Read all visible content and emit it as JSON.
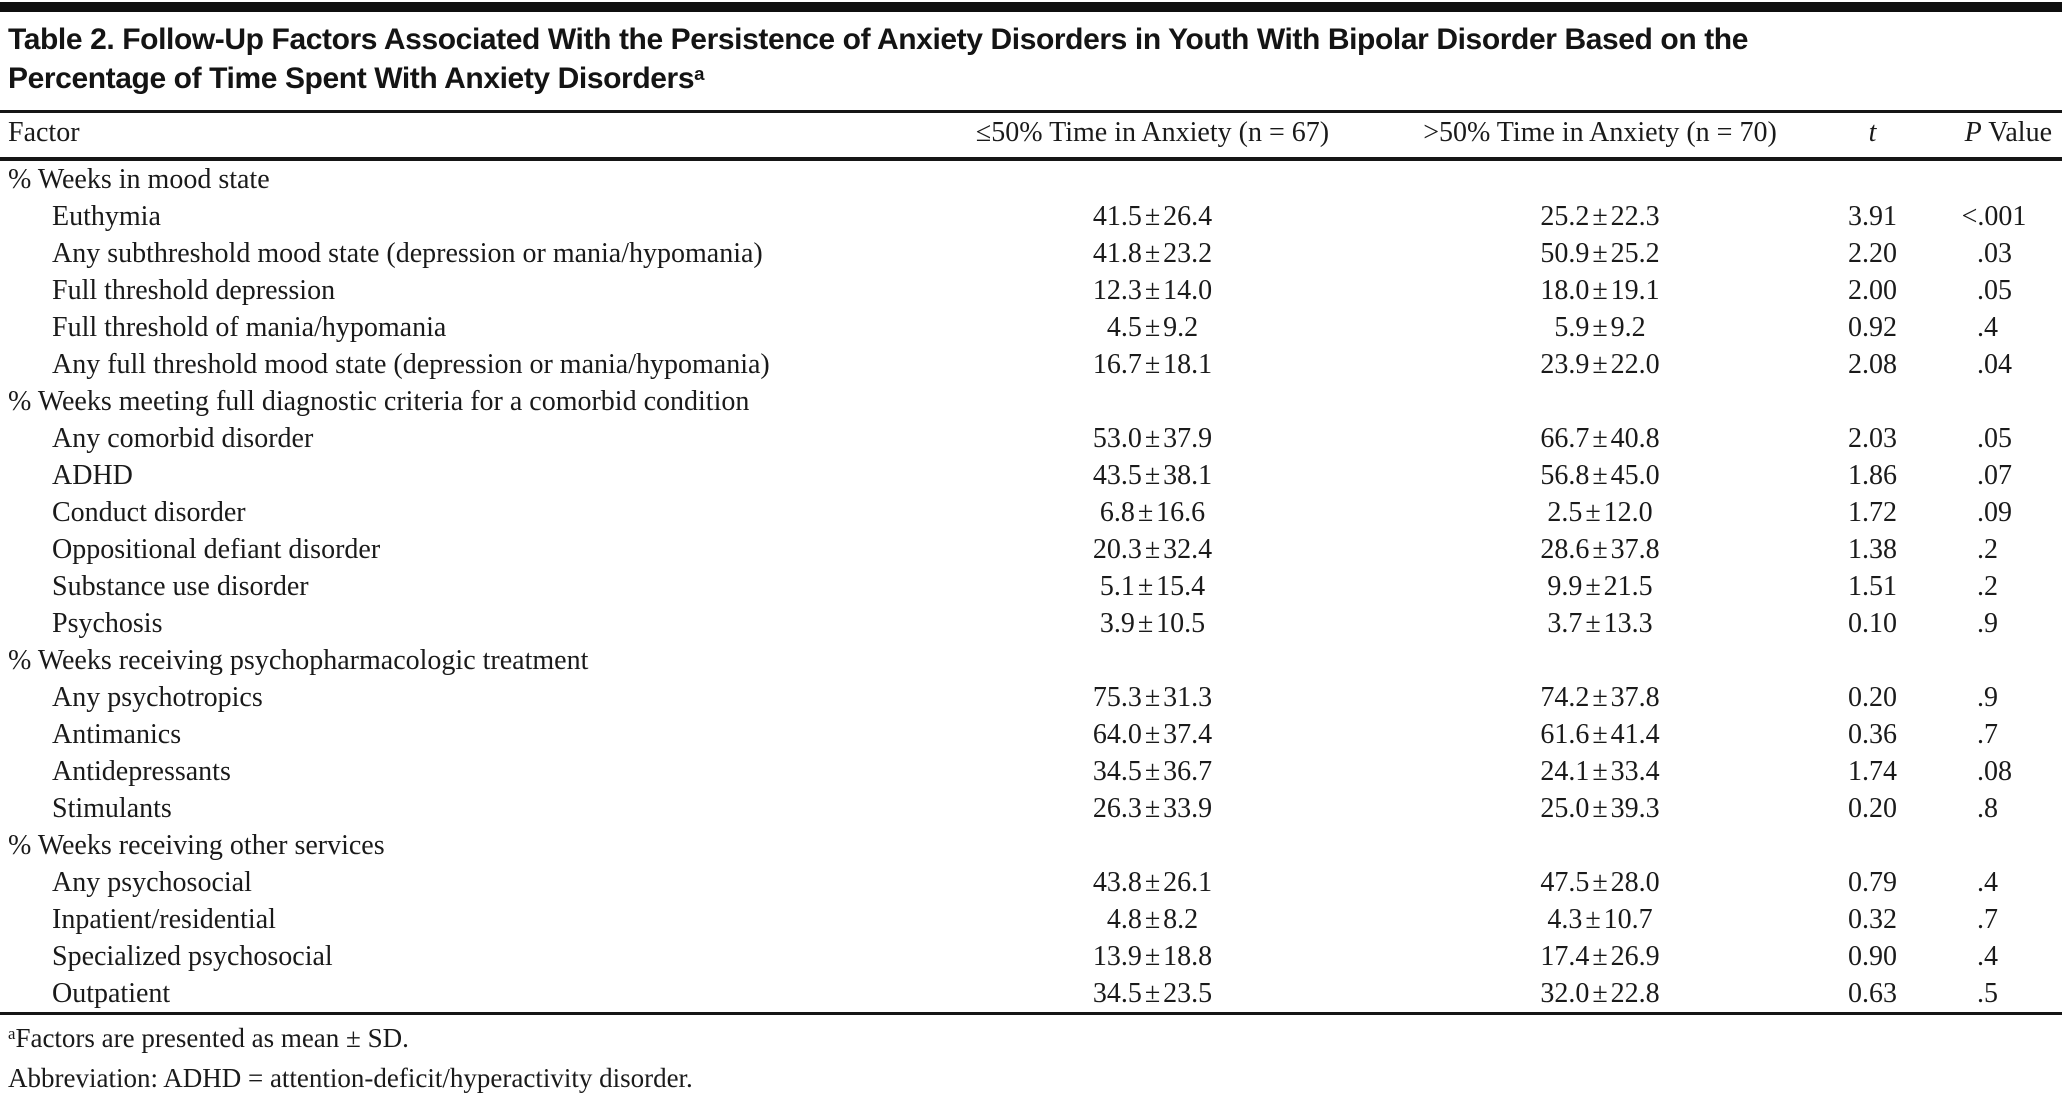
{
  "table": {
    "title": {
      "line1": "Table 2. Follow-Up Factors Associated With the Persistence of Anxiety Disorders in Youth With Bipolar Disorder Based on the",
      "line2": "Percentage of Time Spent With Anxiety Disorders",
      "superscript": "a"
    },
    "header": {
      "factor": "Factor",
      "col1": "≤50% Time in Anxiety (n = 67)",
      "col2": ">50% Time in Anxiety (n = 70)",
      "t": "t",
      "p_italic": "P",
      "p_rest": " Value"
    },
    "sections": [
      {
        "label": "% Weeks in mood state",
        "rows": [
          {
            "factor": "Euthymia",
            "le50": "41.5 ± 26.4",
            "gt50": "25.2 ± 22.3",
            "t": "3.91",
            "p": "<.001"
          },
          {
            "factor": "Any subthreshold mood state (depression or mania/hypomania)",
            "le50": "41.8 ± 23.2",
            "gt50": "50.9 ± 25.2",
            "t": "2.20",
            "p": ".03"
          },
          {
            "factor": "Full threshold depression",
            "le50": "12.3 ± 14.0",
            "gt50": "18.0 ± 19.1",
            "t": "2.00",
            "p": ".05"
          },
          {
            "factor": "Full threshold of mania/hypomania",
            "le50": "4.5 ± 9.2",
            "gt50": "5.9 ± 9.2",
            "t": "0.92",
            "p": ".4"
          },
          {
            "factor": "Any full threshold mood state (depression or mania/hypomania)",
            "le50": "16.7 ± 18.1",
            "gt50": "23.9 ± 22.0",
            "t": "2.08",
            "p": ".04"
          }
        ]
      },
      {
        "label": "% Weeks meeting full diagnostic criteria for a comorbid condition",
        "rows": [
          {
            "factor": "Any comorbid disorder",
            "le50": "53.0 ± 37.9",
            "gt50": "66.7 ± 40.8",
            "t": "2.03",
            "p": ".05"
          },
          {
            "factor": "ADHD",
            "le50": "43.5 ± 38.1",
            "gt50": "56.8 ± 45.0",
            "t": "1.86",
            "p": ".07"
          },
          {
            "factor": "Conduct disorder",
            "le50": "6.8 ± 16.6",
            "gt50": "2.5 ± 12.0",
            "t": "1.72",
            "p": ".09"
          },
          {
            "factor": "Oppositional defiant disorder",
            "le50": "20.3 ± 32.4",
            "gt50": "28.6 ± 37.8",
            "t": "1.38",
            "p": ".2"
          },
          {
            "factor": "Substance use disorder",
            "le50": "5.1 ± 15.4",
            "gt50": "9.9 ± 21.5",
            "t": "1.51",
            "p": ".2"
          },
          {
            "factor": "Psychosis",
            "le50": "3.9 ± 10.5",
            "gt50": "3.7 ± 13.3",
            "t": "0.10",
            "p": ".9"
          }
        ]
      },
      {
        "label": "% Weeks receiving psychopharmacologic treatment",
        "rows": [
          {
            "factor": "Any psychotropics",
            "le50": "75.3 ± 31.3",
            "gt50": "74.2 ± 37.8",
            "t": "0.20",
            "p": ".9"
          },
          {
            "factor": "Antimanics",
            "le50": "64.0 ± 37.4",
            "gt50": "61.6 ± 41.4",
            "t": "0.36",
            "p": ".7"
          },
          {
            "factor": "Antidepressants",
            "le50": "34.5 ± 36.7",
            "gt50": "24.1 ± 33.4",
            "t": "1.74",
            "p": ".08"
          },
          {
            "factor": "Stimulants",
            "le50": "26.3 ± 33.9",
            "gt50": "25.0 ± 39.3",
            "t": "0.20",
            "p": ".8"
          }
        ]
      },
      {
        "label": "% Weeks receiving other services",
        "rows": [
          {
            "factor": "Any psychosocial",
            "le50": "43.8 ± 26.1",
            "gt50": "47.5 ± 28.0",
            "t": "0.79",
            "p": ".4"
          },
          {
            "factor": "Inpatient/residential",
            "le50": "4.8 ± 8.2",
            "gt50": "4.3 ± 10.7",
            "t": "0.32",
            "p": ".7"
          },
          {
            "factor": "Specialized psychosocial",
            "le50": "13.9 ± 18.8",
            "gt50": "17.4 ± 26.9",
            "t": "0.90",
            "p": ".4"
          },
          {
            "factor": "Outpatient",
            "le50": "34.5 ± 23.5",
            "gt50": "32.0 ± 22.8",
            "t": "0.63",
            "p": ".5"
          }
        ]
      }
    ],
    "footnotes": [
      {
        "marker": "a",
        "text": "Factors are presented as mean ± SD."
      },
      {
        "marker": "",
        "text": "Abbreviation: ADHD = attention-deficit/hyperactivity disorder."
      }
    ],
    "colors": {
      "rule": "#161616",
      "text": "#1a1a1a",
      "background": "#ffffff"
    }
  }
}
